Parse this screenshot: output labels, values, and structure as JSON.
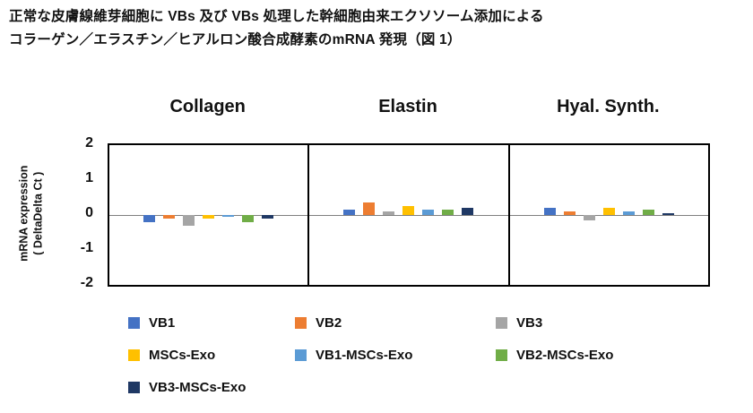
{
  "title": {
    "line1": "正常な皮膚線維芽細胞に VBs 及び VBs 処理した幹細胞由来エクソソーム添加による",
    "line2": "コラーゲン／エラスチン／ヒアルロン酸合成酵素のmRNA 発現（図 1）"
  },
  "chart_data": {
    "type": "bar",
    "title": "",
    "categories": [
      "Collagen",
      "Elastin",
      "Hyal. Synth."
    ],
    "ylabel_line1": "mRNA expression",
    "ylabel_line2": "( DeltaDelta Ct )",
    "ylim": [
      -2,
      2
    ],
    "yticks": [
      2,
      1,
      0,
      -1,
      -2
    ],
    "grid": false,
    "legend_position": "bottom",
    "series": [
      {
        "name": "VB1",
        "color": "#4472C4",
        "values": [
          -0.2,
          0.15,
          0.2
        ]
      },
      {
        "name": "VB2",
        "color": "#ED7D31",
        "values": [
          -0.1,
          0.35,
          0.1
        ]
      },
      {
        "name": "VB3",
        "color": "#A5A5A5",
        "values": [
          -0.3,
          0.1,
          -0.15
        ]
      },
      {
        "name": "MSCs-Exo",
        "color": "#FFC000",
        "values": [
          -0.1,
          0.25,
          0.2
        ]
      },
      {
        "name": "VB1-MSCs-Exo",
        "color": "#5B9BD5",
        "values": [
          -0.05,
          0.15,
          0.1
        ]
      },
      {
        "name": "VB2-MSCs-Exo",
        "color": "#70AD47",
        "values": [
          -0.2,
          0.15,
          0.15
        ]
      },
      {
        "name": "VB3-MSCs-Exo",
        "color": "#1F3864",
        "values": [
          -0.1,
          0.2,
          0.05
        ]
      }
    ]
  }
}
